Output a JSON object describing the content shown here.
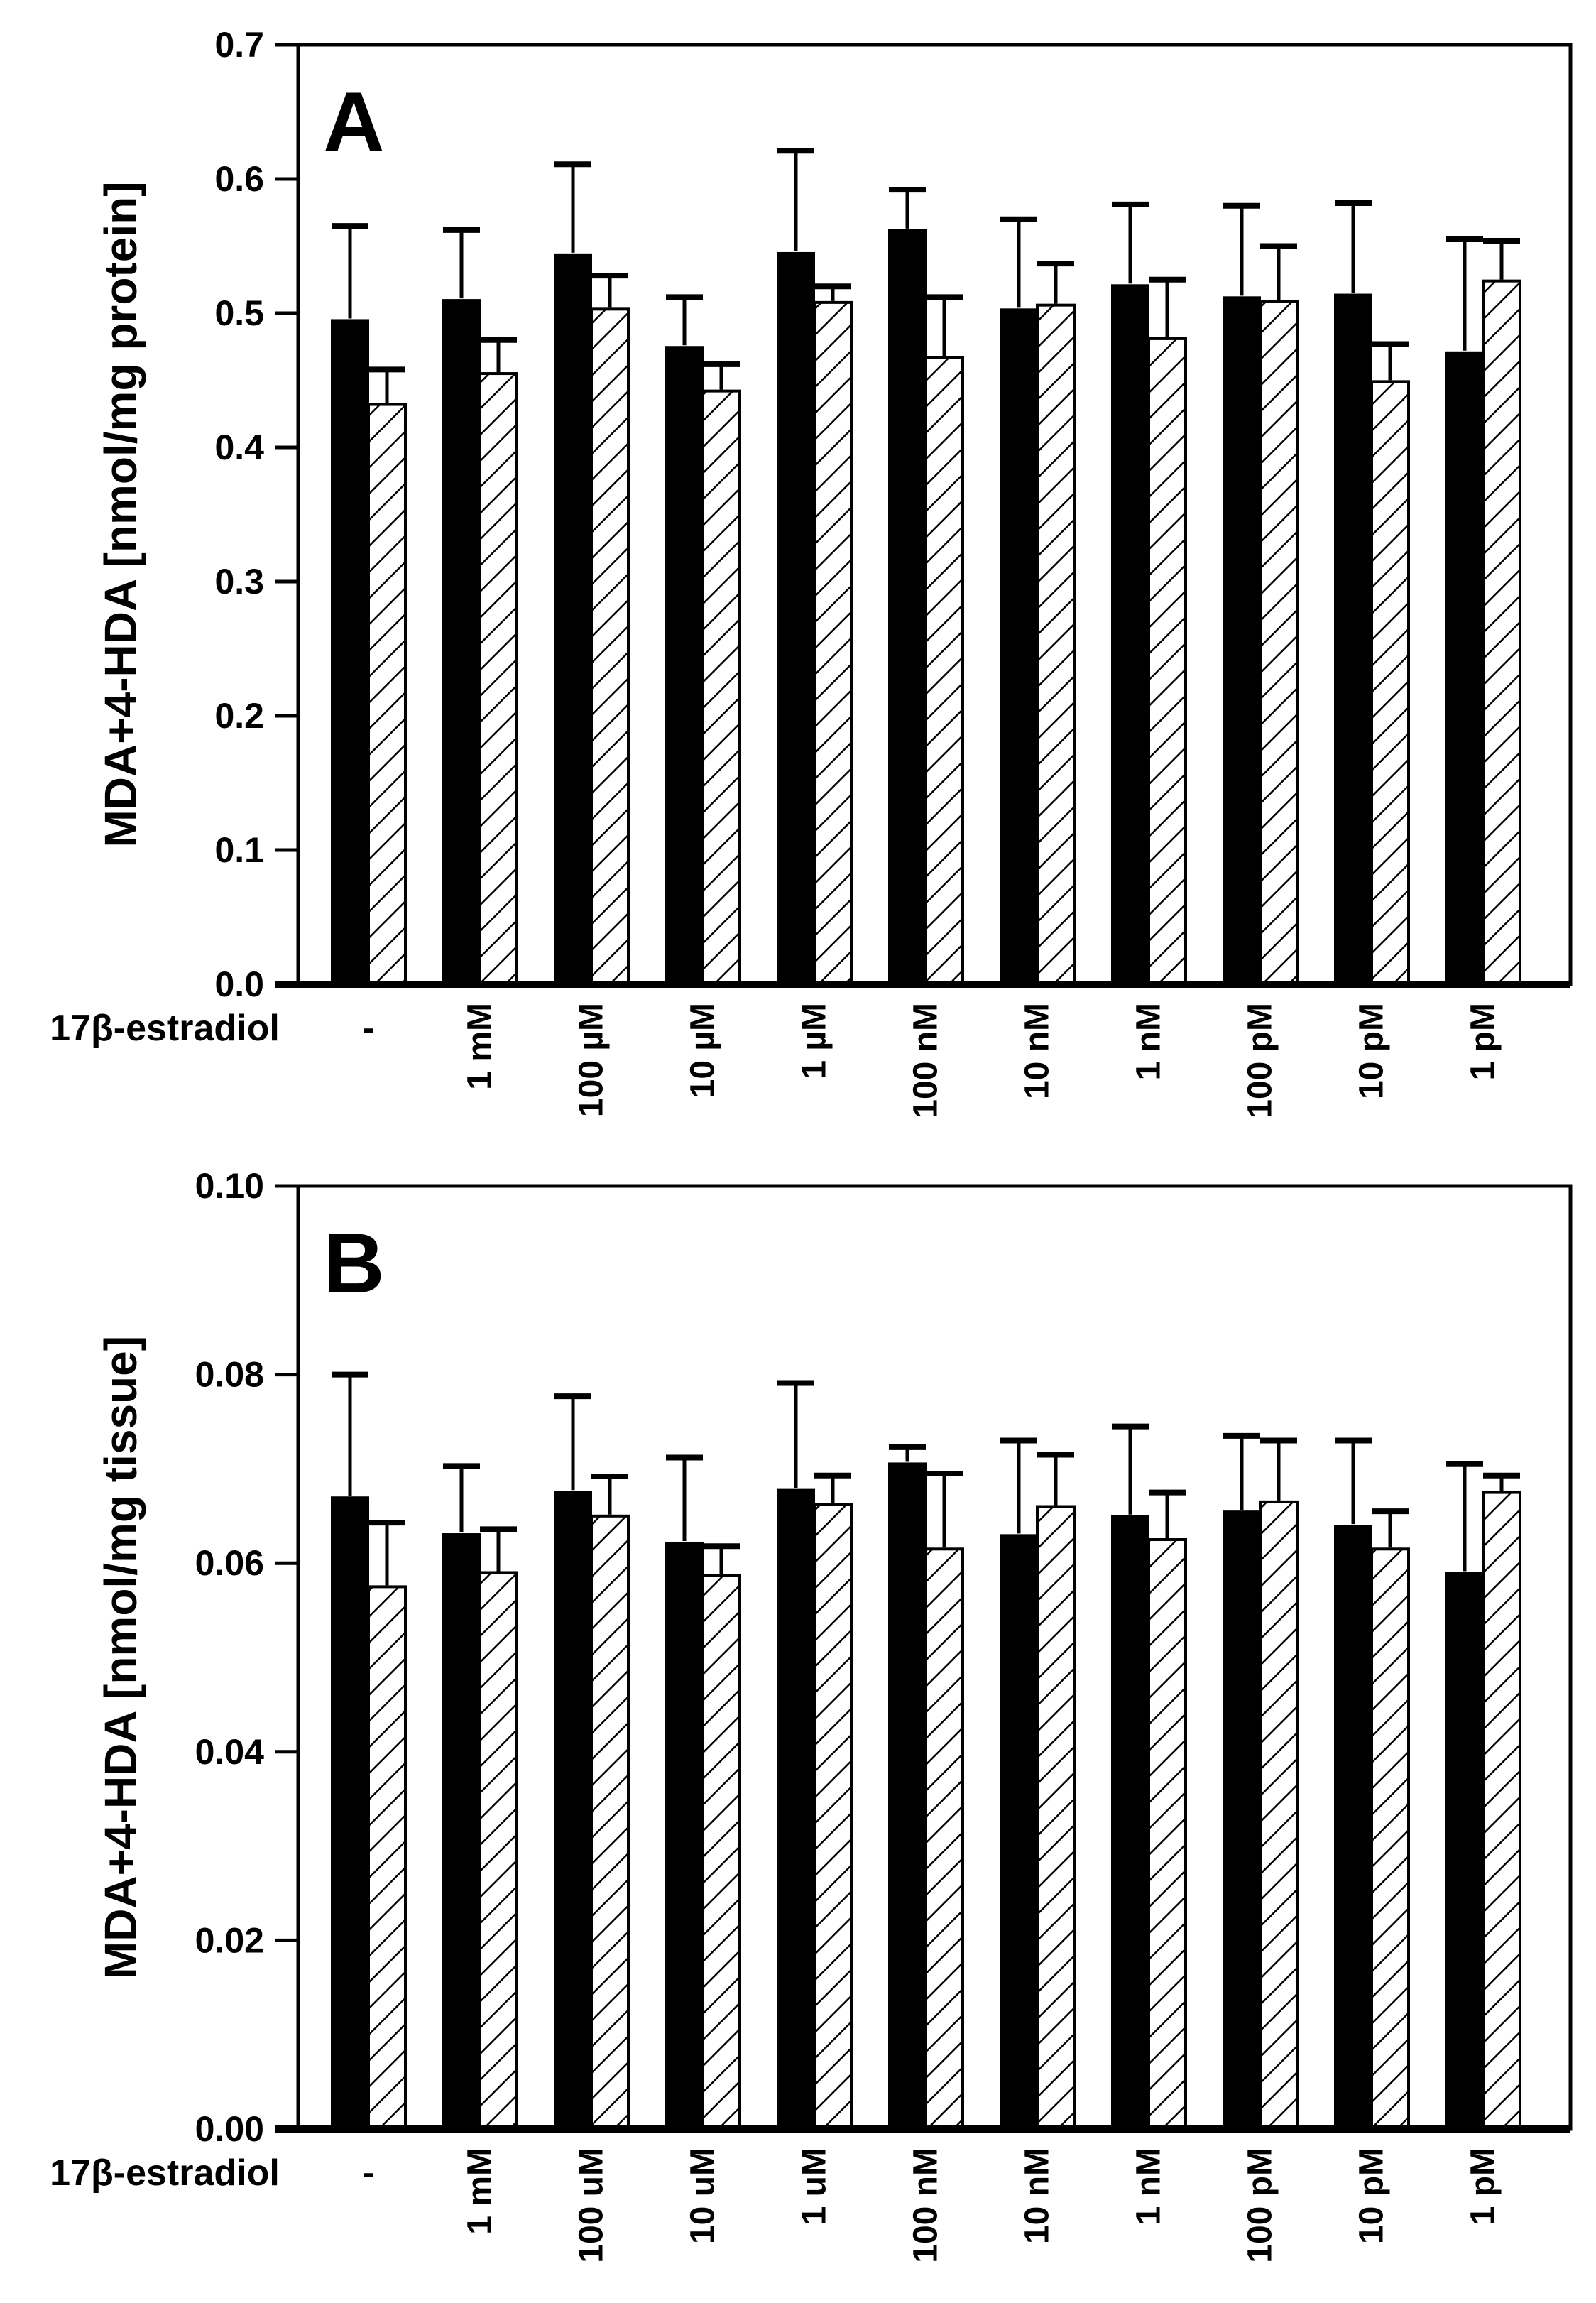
{
  "figure": {
    "background": "#ffffff",
    "ink": "#000000",
    "row_label": "17β-estradiol"
  },
  "chart_data": [
    {
      "type": "bar",
      "panel_letter": "A",
      "title": "",
      "xlabel": "17β-estradiol",
      "ylabel": "MDA+4-HDA [nmol/mg protein]",
      "ylim": [
        0,
        0.7
      ],
      "y_tick_labels": [
        "0.0",
        "0.1",
        "0.2",
        "0.3",
        "0.4",
        "0.5",
        "0.6",
        "0.7"
      ],
      "grid": false,
      "legend": "none",
      "error_bars": "upper, with caps",
      "categories": [
        "-",
        "1 mM",
        "100 µM",
        "10 µM",
        "1 µM",
        "100 nM",
        "10 nM",
        "1 nM",
        "100 pM",
        "10 pM",
        "1 pM"
      ],
      "series": [
        {
          "name": "solid black bars",
          "fill": "solid-black",
          "values": [
            0.495,
            0.51,
            0.544,
            0.475,
            0.545,
            0.562,
            0.503,
            0.521,
            0.512,
            0.514,
            0.471
          ],
          "errors_up": [
            0.07,
            0.052,
            0.067,
            0.037,
            0.076,
            0.03,
            0.067,
            0.06,
            0.068,
            0.068,
            0.084
          ]
        },
        {
          "name": "hatched bars",
          "fill": "diagonal-hatch",
          "values": [
            0.432,
            0.455,
            0.503,
            0.442,
            0.508,
            0.467,
            0.506,
            0.481,
            0.509,
            0.449,
            0.524
          ],
          "errors_up": [
            0.026,
            0.025,
            0.025,
            0.02,
            0.012,
            0.045,
            0.031,
            0.044,
            0.041,
            0.028,
            0.03
          ]
        }
      ]
    },
    {
      "type": "bar",
      "panel_letter": "B",
      "title": "",
      "xlabel": "17β-estradiol",
      "ylabel": "MDA+4-HDA [nmol/mg tissue]",
      "ylim": [
        0,
        0.1
      ],
      "y_tick_labels": [
        "0.00",
        "0.02",
        "0.04",
        "0.06",
        "0.08",
        "0.10"
      ],
      "grid": false,
      "legend": "none",
      "error_bars": "upper, with caps",
      "categories": [
        "-",
        "1 mM",
        "100 uM",
        "10 uM",
        "1 uM",
        "100 nM",
        "10 nM",
        "1 nM",
        "100 pM",
        "10 pM",
        "1 pM"
      ],
      "series": [
        {
          "name": "solid black bars",
          "fill": "solid-black",
          "values": [
            0.067,
            0.0631,
            0.0676,
            0.0622,
            0.0678,
            0.0706,
            0.063,
            0.065,
            0.0655,
            0.064,
            0.059
          ],
          "errors_up": [
            0.013,
            0.0072,
            0.0101,
            0.009,
            0.0113,
            0.0017,
            0.01,
            0.0095,
            0.008,
            0.009,
            0.0115
          ]
        },
        {
          "name": "hatched bars",
          "fill": "diagonal-hatch",
          "values": [
            0.0575,
            0.059,
            0.065,
            0.0587,
            0.0662,
            0.0615,
            0.066,
            0.0625,
            0.0665,
            0.0615,
            0.0675
          ],
          "errors_up": [
            0.0068,
            0.0046,
            0.0042,
            0.0031,
            0.0031,
            0.008,
            0.0055,
            0.005,
            0.0065,
            0.004,
            0.0018
          ]
        }
      ]
    }
  ]
}
